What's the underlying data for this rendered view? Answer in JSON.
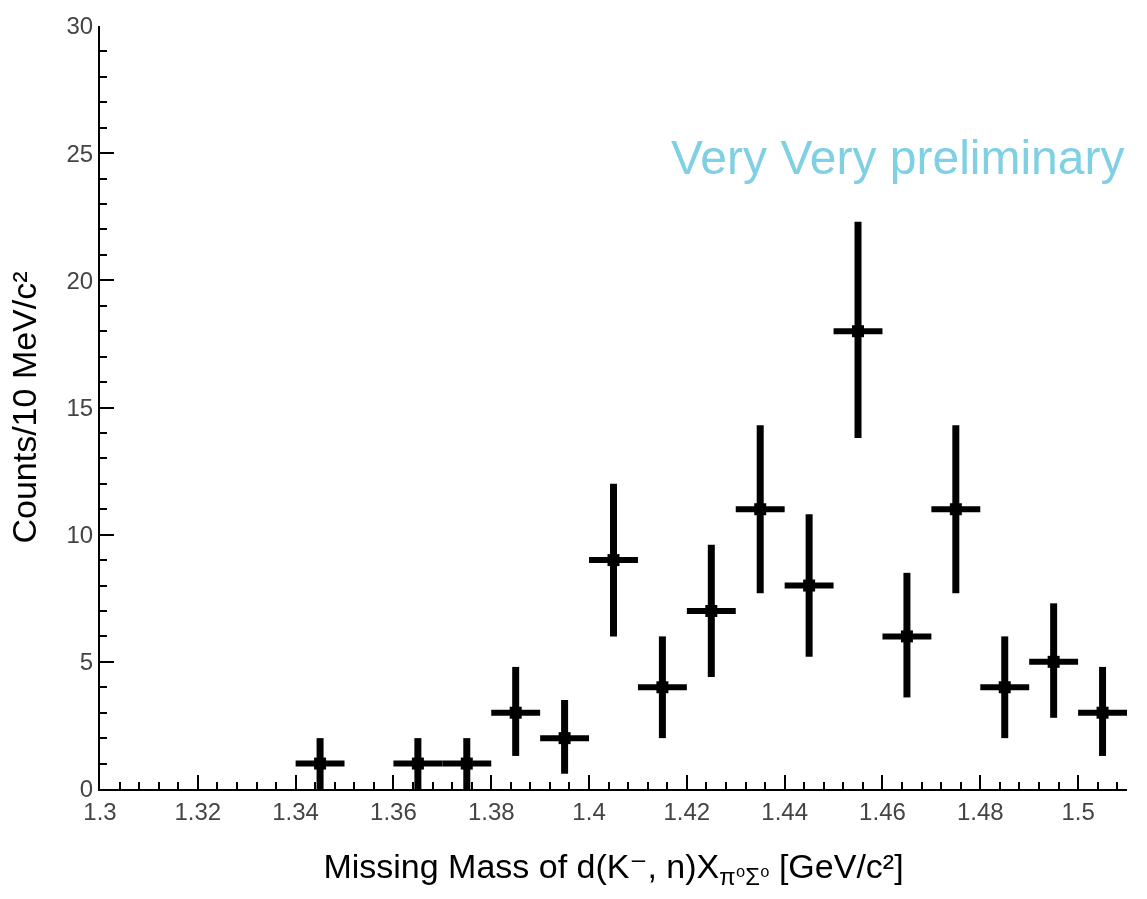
{
  "chart_data": {
    "type": "scatter",
    "xlabel": "Missing Mass of d(K⁻, n)X$_{π⁰Σ⁰}$ [GeV/c²]",
    "ylabel": "Counts/10 MeV/c²",
    "x": [
      1.345,
      1.365,
      1.375,
      1.385,
      1.395,
      1.405,
      1.415,
      1.425,
      1.435,
      1.445,
      1.455,
      1.465,
      1.475,
      1.485,
      1.495,
      1.505
    ],
    "values": [
      1,
      1,
      1,
      3,
      2,
      9,
      4,
      7,
      11,
      8,
      18,
      6,
      11,
      4,
      5,
      3
    ],
    "errors": [
      [
        0,
        2
      ],
      [
        0,
        2
      ],
      [
        0,
        2
      ],
      [
        1.3,
        4.8
      ],
      [
        0.6,
        3.5
      ],
      [
        6,
        12
      ],
      [
        2,
        6
      ],
      [
        4.4,
        9.6
      ],
      [
        7.7,
        14.3
      ],
      [
        5.2,
        10.8
      ],
      [
        13.8,
        22.3
      ],
      [
        3.6,
        8.5
      ],
      [
        7.7,
        14.3
      ],
      [
        2,
        6
      ],
      [
        2.8,
        7.3
      ],
      [
        1.3,
        4.8
      ]
    ],
    "xerrors": [
      0.005,
      0.005,
      0.005,
      0.005,
      0.005,
      0.005,
      0.005,
      0.005,
      0.005,
      0.005,
      0.005,
      0.005,
      0.005,
      0.005,
      0.005,
      0.005
    ],
    "color": "#000000",
    "marker": "square",
    "xlim": [
      1.3,
      1.51
    ],
    "xticks": [
      1.3,
      1.32,
      1.34,
      1.36,
      1.38,
      1.4,
      1.42,
      1.44,
      1.46,
      1.48,
      1.5
    ],
    "ylim": [
      0,
      30
    ],
    "yticks": [
      0,
      5,
      10,
      15,
      20,
      25,
      30
    ],
    "grid": false,
    "annotations": [
      "Very Very preliminary"
    ]
  }
}
